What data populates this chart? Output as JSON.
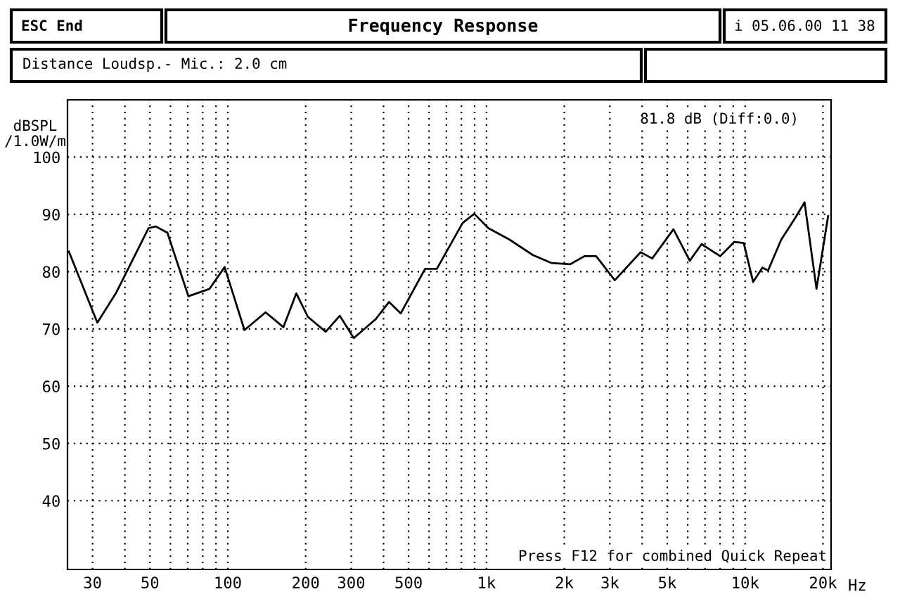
{
  "chart_data": {
    "type": "line",
    "title": "Frequency Response",
    "ylabel": "dBSPL\n/1.0W/m",
    "annotations": [
      "ESC End",
      "i 05.06.00 11 38",
      "Distance Loudsp.- Mic.: 2.0 cm",
      "81.8 dB (Diff:0.0)",
      "Press F12 for combined Quick Repeat"
    ],
    "x": [
      24.3,
      31.3,
      36.9,
      49.4,
      52.6,
      58.4,
      70.4,
      85,
      97.2,
      116,
      140,
      164,
      184,
      204,
      239,
      271,
      307,
      373,
      420,
      466,
      579,
      643,
      809,
      897,
      1017,
      1227,
      1511,
      1786,
      2110,
      2393,
      2655,
      3134,
      3945,
      4375,
      5284,
      6110,
      6787,
      8016,
      9084,
      9880,
      10740,
      11670,
      12270,
      13800,
      15640,
      16980,
      18880,
      20940
    ],
    "series": [
      {
        "color": "#000000",
        "values": [
          83.5,
          71.1,
          76.2,
          87.6,
          87.9,
          86.8,
          75.7,
          77.0,
          80.8,
          69.8,
          72.9,
          70.3,
          76.2,
          72.1,
          69.5,
          72.3,
          68.4,
          71.7,
          74.7,
          72.7,
          80.5,
          80.5,
          88.5,
          90.1,
          87.6,
          85.6,
          82.9,
          81.5,
          81.3,
          82.7,
          82.7,
          78.5,
          83.4,
          82.3,
          87.4,
          81.9,
          84.8,
          82.7,
          85.2,
          85.0,
          78.2,
          80.7,
          80.2,
          85.6,
          89.4,
          92.1,
          77.0,
          89.7
        ]
      }
    ],
    "log": "x",
    "xlim": [
      24,
      21500
    ],
    "ylim": [
      28,
      110
    ],
    "xticks": [
      30,
      {
        "value": 40,
        "label": null
      },
      50,
      {
        "value": 60,
        "label": null
      },
      {
        "value": 70,
        "label": null
      },
      {
        "value": 80,
        "label": null
      },
      {
        "value": 90,
        "label": null
      },
      100,
      200,
      300,
      {
        "value": 400,
        "label": null
      },
      500,
      {
        "value": 600,
        "label": null
      },
      {
        "value": 700,
        "label": null
      },
      {
        "value": 800,
        "label": null
      },
      {
        "value": 900,
        "label": null
      },
      {
        "value": 1000,
        "label": "1k"
      },
      {
        "value": 2000,
        "label": "2k"
      },
      {
        "value": 3000,
        "label": "3k"
      },
      {
        "value": 4000,
        "label": null
      },
      {
        "value": 5000,
        "label": "5k"
      },
      {
        "value": 6000,
        "label": null
      },
      {
        "value": 7000,
        "label": null
      },
      {
        "value": 8000,
        "label": null
      },
      {
        "value": 9000,
        "label": null
      },
      {
        "value": 10000,
        "label": "10k"
      },
      {
        "value": 20000,
        "label": "20k"
      }
    ],
    "xlabel": "Hz",
    "yticks": [
      40,
      50,
      60,
      70,
      80,
      90,
      100
    ],
    "grid": true,
    "marker": "none",
    "line_style": "solid"
  }
}
